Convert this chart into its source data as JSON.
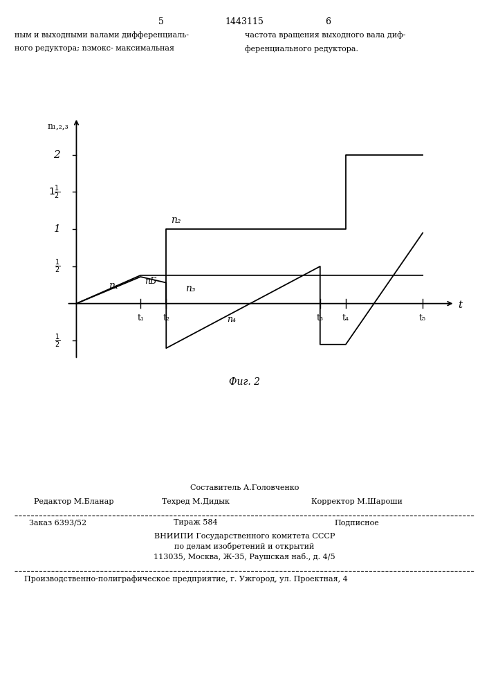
{
  "background_color": "#ffffff",
  "line_color": "#000000",
  "t1": 2.0,
  "t2": 2.8,
  "t3": 7.6,
  "t4": 8.4,
  "t5": 10.8,
  "xlim": [
    -0.4,
    11.8
  ],
  "ylim": [
    -0.85,
    2.5
  ],
  "header_page_left": "5",
  "header_patent": "1443115",
  "header_page_right": "6",
  "header_left1": "ным и выходными валами дифференциаль-",
  "header_left2": "ного редуктора; nзмокс- максимальная",
  "header_right1": "частота вращения выходного вала диф-",
  "header_right2": "ференциального редуктора.",
  "fig_caption": "Фиг. 2",
  "footer_sestavitel": "Составитель А.Головченко",
  "footer_editor": "Редактор М.Бланар",
  "footer_techred": "Техред М.Дидык",
  "footer_corrector": "Корректор М.Шароши",
  "footer_zakaz": "Заказ 6393/52",
  "footer_tirage": "Тираж 584",
  "footer_podpisnoe": "Подписное",
  "footer_vniip1": "ВНИИПИ Государственного комитета СССР",
  "footer_vniip2": "по делам изобретений и открытий",
  "footer_vniip3": "113035, Москва, Ж-35, Раушская наб., д. 4/5",
  "footer_prod": "Производственно-полиграфическое предприятие, г. Ужгород, ул. Проектная, 4"
}
